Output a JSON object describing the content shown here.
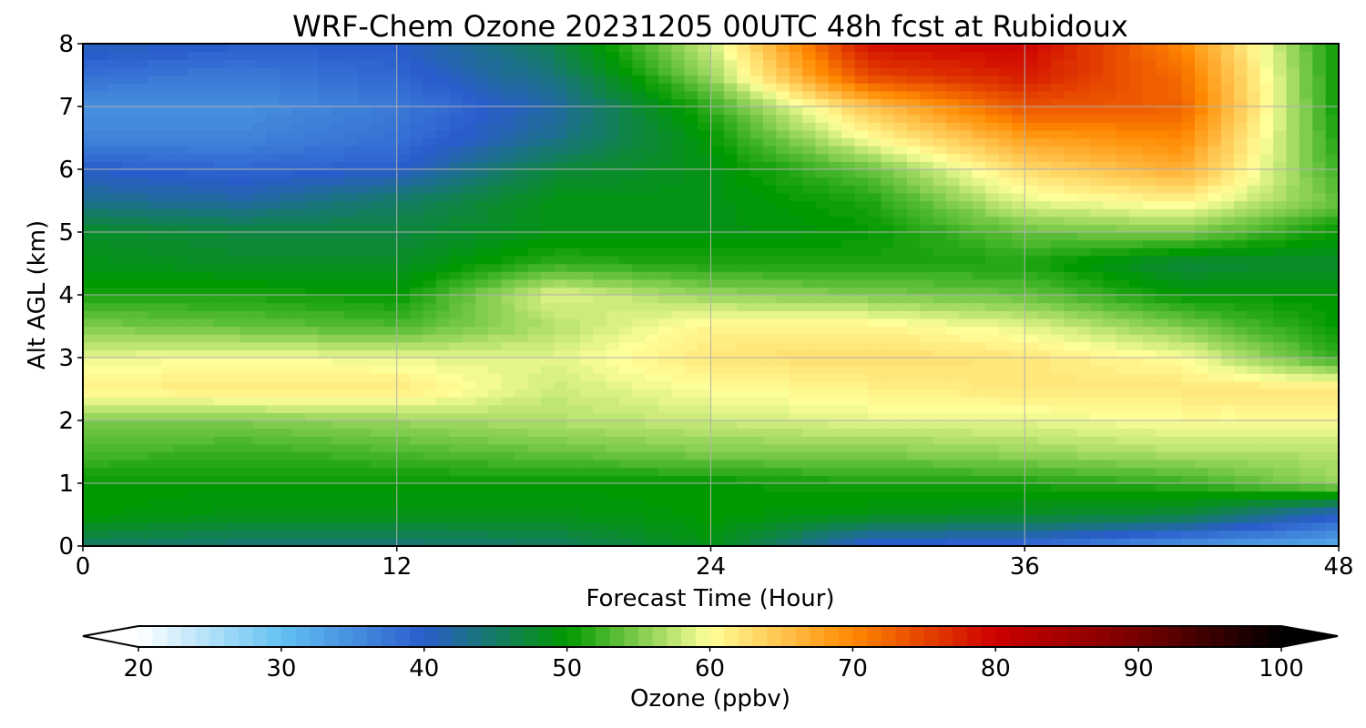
{
  "chart_data": {
    "type": "heatmap",
    "title": "WRF-Chem Ozone  20231205 00UTC 48h fcst at Rubidoux",
    "xlabel": "Forecast Time (Hour)",
    "ylabel": "Alt AGL (km)",
    "xlim": [
      0,
      48
    ],
    "ylim": [
      0,
      8
    ],
    "xticks": [
      0,
      12,
      24,
      36,
      48
    ],
    "yticks": [
      0,
      1,
      2,
      3,
      4,
      5,
      6,
      7,
      8
    ],
    "grid": true,
    "x": [
      0,
      6,
      12,
      18,
      24,
      30,
      36,
      42,
      48
    ],
    "y": [
      0,
      0.5,
      1,
      1.5,
      2,
      2.5,
      3,
      3.5,
      4,
      4.5,
      5,
      5.5,
      6,
      6.5,
      7,
      7.5,
      8
    ],
    "values": [
      [
        45,
        44,
        44,
        45,
        49,
        39,
        38,
        34,
        32
      ],
      [
        50,
        49,
        49,
        49,
        50,
        49,
        48,
        47,
        40
      ],
      [
        50,
        50,
        50,
        50,
        50,
        51,
        51,
        52,
        56
      ],
      [
        53,
        52,
        53,
        54,
        55,
        55,
        56,
        57,
        57
      ],
      [
        55,
        55,
        56,
        57,
        58,
        59,
        59,
        60,
        60
      ],
      [
        61,
        62,
        62,
        58,
        60,
        61,
        62,
        62,
        62
      ],
      [
        59,
        60,
        59,
        59,
        62,
        63,
        62,
        60,
        52
      ],
      [
        55,
        54,
        53,
        57,
        61,
        61,
        59,
        55,
        50
      ],
      [
        51,
        51,
        50,
        59,
        56,
        55,
        54,
        50,
        50
      ],
      [
        49,
        48,
        48,
        52,
        51,
        51,
        51,
        47,
        48
      ],
      [
        48,
        47,
        47,
        49,
        49,
        50,
        54,
        55,
        50
      ],
      [
        43,
        42,
        45,
        49,
        49,
        51,
        59,
        61,
        54
      ],
      [
        40,
        39,
        40,
        47,
        49,
        54,
        63,
        67,
        52
      ],
      [
        36,
        36,
        38,
        43,
        50,
        60,
        68,
        70,
        51
      ],
      [
        35,
        35,
        37,
        42,
        52,
        65,
        74,
        73,
        50
      ],
      [
        38,
        37,
        39,
        44,
        56,
        75,
        78,
        72,
        50
      ],
      [
        41,
        40,
        40,
        46,
        58,
        79,
        80,
        70,
        50
      ]
    ],
    "colorbar": {
      "label": "Ozone  (ppbv)",
      "min": 20,
      "max": 100,
      "ticks": [
        20,
        30,
        40,
        50,
        60,
        70,
        80,
        90,
        100
      ],
      "extend": "both",
      "colors": [
        {
          "v": 20,
          "c": "#ffffff"
        },
        {
          "v": 30,
          "c": "#63c1f2"
        },
        {
          "v": 40,
          "c": "#2a5dcc"
        },
        {
          "v": 50,
          "c": "#009900"
        },
        {
          "v": 60,
          "c": "#ffff99"
        },
        {
          "v": 70,
          "c": "#ff8800"
        },
        {
          "v": 80,
          "c": "#cc0000"
        },
        {
          "v": 90,
          "c": "#770000"
        },
        {
          "v": 100,
          "c": "#000000"
        }
      ]
    }
  }
}
